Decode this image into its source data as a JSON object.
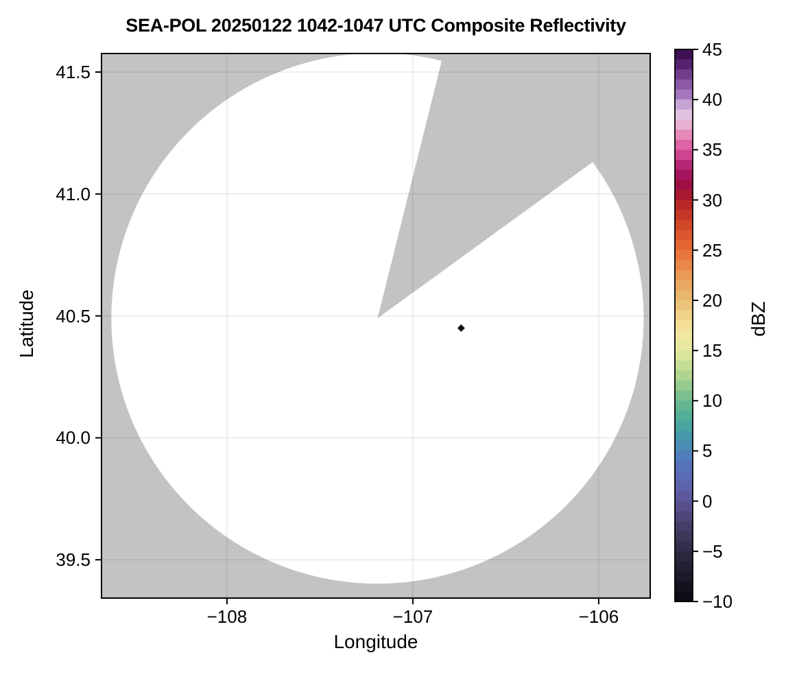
{
  "figure": {
    "colors": {
      "background": "#ffffff",
      "no_data_gray": "#c3c3c3",
      "coverage_white": "#ffffff",
      "grid": "rgba(0,0,0,0.10)",
      "frame": "#000000",
      "text": "#000000"
    }
  },
  "chart_data": {
    "type": "heatmap",
    "title": "SEA-POL 20250122 1042-1047 UTC Composite Reflectivity",
    "xlabel": "Longitude",
    "ylabel": "Latitude",
    "xlim": [
      -108.675,
      -105.723
    ],
    "ylim": [
      39.343,
      41.576
    ],
    "xticks": [
      -108,
      -107,
      -106
    ],
    "xtick_labels": [
      "−108",
      "−107",
      "−106"
    ],
    "yticks": [
      39.5,
      40.0,
      40.5,
      41.0,
      41.5
    ],
    "ytick_labels": [
      "39.5",
      "40.0",
      "40.5",
      "41.0",
      "41.5"
    ],
    "grid": true,
    "legend_position": "none",
    "colorbar": {
      "label": "dBZ",
      "min": -10,
      "max": 45,
      "block_size_dbz": 1,
      "ticks": [
        45,
        40,
        35,
        30,
        25,
        20,
        15,
        10,
        5,
        0,
        -5,
        -10
      ],
      "tick_labels": [
        "45",
        "40",
        "35",
        "30",
        "25",
        "20",
        "15",
        "10",
        "5",
        "0",
        "−5",
        "−10"
      ],
      "colormap_stops": [
        [
          -10,
          "#0b0a10"
        ],
        [
          -8,
          "#181523"
        ],
        [
          -5,
          "#2f2a45"
        ],
        [
          -3,
          "#403a5f"
        ],
        [
          0,
          "#5b5496"
        ],
        [
          2,
          "#5e68b1"
        ],
        [
          4,
          "#5377bc"
        ],
        [
          5,
          "#4b85ba"
        ],
        [
          7,
          "#45a0a4"
        ],
        [
          8,
          "#4daa9b"
        ],
        [
          10,
          "#6cba90"
        ],
        [
          12,
          "#a4d18d"
        ],
        [
          15,
          "#e3ea9f"
        ],
        [
          17,
          "#f4e6a1"
        ],
        [
          18,
          "#f2d88f"
        ],
        [
          20,
          "#e8bd72"
        ],
        [
          22,
          "#eba25d"
        ],
        [
          25,
          "#e96e36"
        ],
        [
          28,
          "#cc4026"
        ],
        [
          30,
          "#b22026"
        ],
        [
          31,
          "#9d1139"
        ],
        [
          32,
          "#9e0f4f"
        ],
        [
          33,
          "#ab1a68"
        ],
        [
          35,
          "#d8539c"
        ],
        [
          36,
          "#e277ae"
        ],
        [
          37,
          "#ea9cc4"
        ],
        [
          38,
          "#e8c2de"
        ],
        [
          39,
          "#dbc2e4"
        ],
        [
          40,
          "#b187c6"
        ],
        [
          42,
          "#7f4a9c"
        ],
        [
          44,
          "#4a1560"
        ],
        [
          45,
          "#350b47"
        ]
      ]
    },
    "radar_coverage": {
      "center_lon": -107.19,
      "center_lat": 40.49,
      "radius_lon_deg": 1.432,
      "radius_lat_deg": 1.088,
      "missing_sector_azimuth_deg": [
        14,
        54
      ]
    },
    "echoes": [
      {
        "lon": -106.74,
        "lat": 40.45,
        "dbz": -9
      }
    ]
  }
}
